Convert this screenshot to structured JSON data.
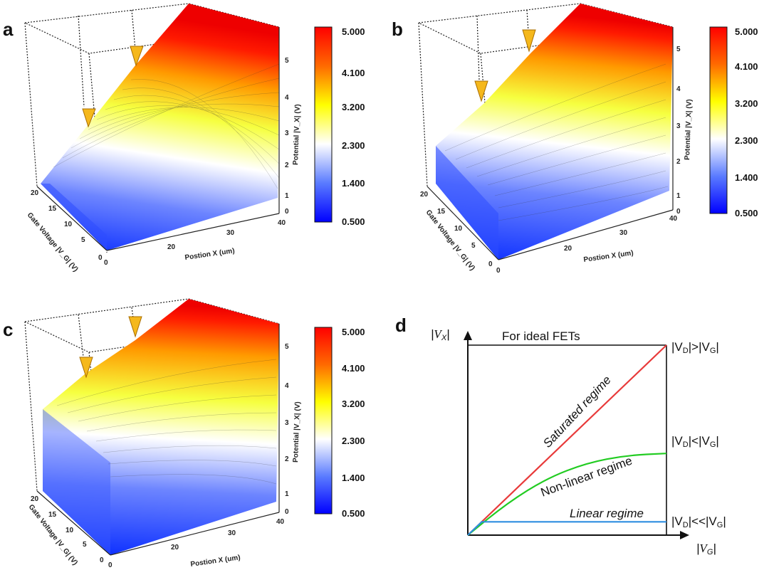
{
  "panels": {
    "a": {
      "label": "a",
      "variant": 0
    },
    "b": {
      "label": "b",
      "variant": 1
    },
    "c": {
      "label": "c",
      "variant": 2
    },
    "d": {
      "label": "d"
    }
  },
  "surface_axes": {
    "x_label": "Postion X (um)",
    "x_ticks": [
      "0",
      "20",
      "30",
      "40"
    ],
    "y_ticks": [
      "0",
      "5",
      "10",
      "15",
      "20"
    ],
    "z_ticks": [
      "0",
      "1",
      "2",
      "3",
      "4",
      "5"
    ],
    "y_labels": [
      "Gate Voltage |V_G| (V)",
      "Gate Voltage |V_G| (V)",
      "Gate Voltage |V_G| (V)"
    ],
    "z_label": "Potential |V_X| (V)"
  },
  "colorbar": {
    "ticks": [
      "5.000",
      "4.100",
      "3.200",
      "2.300",
      "1.400",
      "0.500"
    ],
    "colors": [
      "#ff0000",
      "#ffff00",
      "#ffffff",
      "#0000ff"
    ]
  },
  "colors": {
    "saturated": "#e83a3a",
    "nonlinear": "#22cc22",
    "linear": "#2e8de0",
    "arrow_fill": "#f5b81c",
    "arrow_stroke": "#a86d00"
  },
  "chart_data": [
    {
      "type": "heatmap",
      "title": "",
      "xlabel": "Postion X (um)",
      "ylabel": "Gate Voltage |V_G| (V)",
      "zlabel": "Potential |V_X| (V)",
      "xlim": [
        0,
        40
      ],
      "ylim": [
        0,
        20
      ],
      "zlim": [
        0,
        5
      ],
      "colorscale": {
        "min": 0.5,
        "max": 5.0,
        "ticks": [
          5.0,
          4.1,
          3.2,
          2.3,
          1.4,
          0.5
        ]
      }
    },
    {
      "type": "heatmap",
      "title": "",
      "xlabel": "Postion X (um)",
      "ylabel": "Gate Voltage |V_G| (V)",
      "zlabel": "Potential |V_X| (V)",
      "xlim": [
        0,
        40
      ],
      "ylim": [
        0,
        20
      ],
      "zlim": [
        0,
        5
      ],
      "colorscale": {
        "min": 0.5,
        "max": 5.0,
        "ticks": [
          5.0,
          4.1,
          3.2,
          2.3,
          1.4,
          0.5
        ]
      }
    },
    {
      "type": "heatmap",
      "title": "",
      "xlabel": "Postion X (um)",
      "ylabel": "Gate Voltage |V_G| (V)",
      "zlabel": "Potential |V_X| (V)",
      "xlim": [
        0,
        40
      ],
      "ylim": [
        0,
        20
      ],
      "zlim": [
        0,
        5
      ],
      "colorscale": {
        "min": 0.5,
        "max": 5.0,
        "ticks": [
          5.0,
          4.1,
          3.2,
          2.3,
          1.4,
          0.5
        ]
      }
    },
    {
      "type": "line",
      "title": "For ideal FETs",
      "xlabel": "|V_G|",
      "ylabel": "|V_X|",
      "series": [
        {
          "name": "Saturated regime",
          "label_right": "|V_D|>|V_G|",
          "points": [
            [
              0,
              0
            ],
            [
              1,
              1
            ]
          ]
        },
        {
          "name": "Non-linear regime",
          "label_right": "|V_D|<|V_G|",
          "points": [
            [
              0,
              0
            ],
            [
              0.2,
              0.17
            ],
            [
              0.4,
              0.3
            ],
            [
              0.6,
              0.38
            ],
            [
              0.8,
              0.42
            ],
            [
              1,
              0.43
            ]
          ]
        },
        {
          "name": "Linear regime",
          "label_right": "|V_D|<<|V_G|",
          "points": [
            [
              0,
              0
            ],
            [
              0.07,
              0.07
            ],
            [
              1,
              0.07
            ]
          ]
        }
      ]
    }
  ]
}
